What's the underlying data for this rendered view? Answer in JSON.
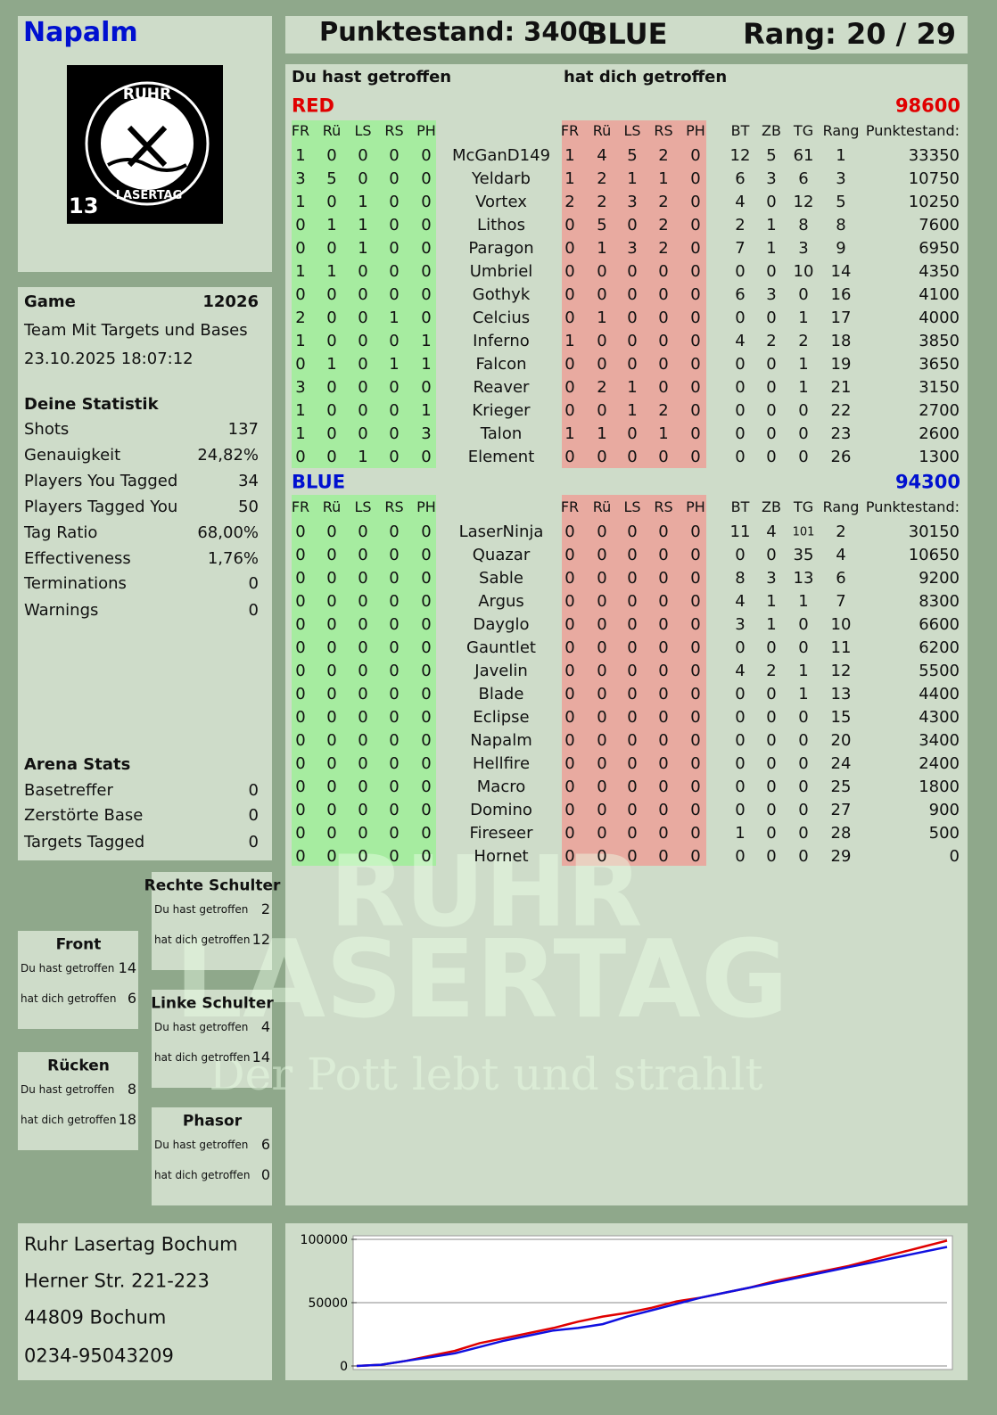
{
  "header": {
    "player": "Napalm",
    "score": "Punktestand: 3400",
    "team": "BLUE",
    "rank": "Rang: 20 / 29"
  },
  "logo": {
    "top": "RUHR",
    "bottom": "LASERTAG",
    "number": "13"
  },
  "game": {
    "label": "Game",
    "id": 12026,
    "mode": "Team Mit Targets und Bases",
    "date": "23.10.2025 18:07:12"
  },
  "stats": {
    "title": "Deine Statistik",
    "rows": [
      [
        "Shots",
        137
      ],
      [
        "Genauigkeit",
        "24,82%"
      ],
      [
        "Players You Tagged",
        34
      ],
      [
        "Players Tagged You",
        50
      ],
      [
        "Tag Ratio",
        "68,00%"
      ],
      [
        "Effectiveness",
        "1,76%"
      ],
      [
        "Terminations",
        0
      ],
      [
        "Warnings",
        0
      ]
    ]
  },
  "arena": {
    "title": "Arena Stats",
    "rows": [
      [
        "Basetreffer",
        0
      ],
      [
        "Zerstörte Base",
        0
      ],
      [
        "Targets Tagged",
        0
      ]
    ]
  },
  "zones": {
    "you_hit_label": "Du hast getroffen",
    "hit_you_label": "hat dich getroffen",
    "items": [
      {
        "name": "Rechte Schulter",
        "you_hit": 2,
        "hit_you": 12
      },
      {
        "name": "Front",
        "you_hit": 14,
        "hit_you": 6
      },
      {
        "name": "Linke Schulter",
        "you_hit": 4,
        "hit_you": 14
      },
      {
        "name": "Rücken",
        "you_hit": 8,
        "hit_you": 18
      },
      {
        "name": "Phasor",
        "you_hit": 6,
        "hit_you": 0
      }
    ]
  },
  "address": [
    "Ruhr Lasertag Bochum",
    "Herner Str. 221-223",
    "44809 Bochum",
    "0234-95043209"
  ],
  "table": {
    "you_hit_heading": "Du hast getroffen",
    "hit_you_heading": "hat dich getroffen",
    "hit_columns": [
      "FR",
      "Rü",
      "LS",
      "RS",
      "PH"
    ],
    "stat_columns": [
      "BT",
      "ZB",
      "TG",
      "Rang",
      "Punktestand:"
    ],
    "teams": [
      {
        "name": "RED",
        "color": "#e00000",
        "total": 98600,
        "rows": [
          {
            "name": "McGanD149",
            "you_hit": [
              1,
              0,
              0,
              0,
              0
            ],
            "hit_you": [
              1,
              4,
              5,
              2,
              0
            ],
            "stats": [
              12,
              5,
              61,
              1,
              33350
            ]
          },
          {
            "name": "Yeldarb",
            "you_hit": [
              3,
              5,
              0,
              0,
              0
            ],
            "hit_you": [
              1,
              2,
              1,
              1,
              0
            ],
            "stats": [
              6,
              3,
              6,
              3,
              10750
            ]
          },
          {
            "name": "Vortex",
            "you_hit": [
              1,
              0,
              1,
              0,
              0
            ],
            "hit_you": [
              2,
              2,
              3,
              2,
              0
            ],
            "stats": [
              4,
              0,
              12,
              5,
              10250
            ]
          },
          {
            "name": "Lithos",
            "you_hit": [
              0,
              1,
              1,
              0,
              0
            ],
            "hit_you": [
              0,
              5,
              0,
              2,
              0
            ],
            "stats": [
              2,
              1,
              8,
              8,
              7600
            ]
          },
          {
            "name": "Paragon",
            "you_hit": [
              0,
              0,
              1,
              0,
              0
            ],
            "hit_you": [
              0,
              1,
              3,
              2,
              0
            ],
            "stats": [
              7,
              1,
              3,
              9,
              6950
            ]
          },
          {
            "name": "Umbriel",
            "you_hit": [
              1,
              1,
              0,
              0,
              0
            ],
            "hit_you": [
              0,
              0,
              0,
              0,
              0
            ],
            "stats": [
              0,
              0,
              10,
              14,
              4350
            ]
          },
          {
            "name": "Gothyk",
            "you_hit": [
              0,
              0,
              0,
              0,
              0
            ],
            "hit_you": [
              0,
              0,
              0,
              0,
              0
            ],
            "stats": [
              6,
              3,
              0,
              16,
              4100
            ]
          },
          {
            "name": "Celcius",
            "you_hit": [
              2,
              0,
              0,
              1,
              0
            ],
            "hit_you": [
              0,
              1,
              0,
              0,
              0
            ],
            "stats": [
              0,
              0,
              1,
              17,
              4000
            ]
          },
          {
            "name": "Inferno",
            "you_hit": [
              1,
              0,
              0,
              0,
              1
            ],
            "hit_you": [
              1,
              0,
              0,
              0,
              0
            ],
            "stats": [
              4,
              2,
              2,
              18,
              3850
            ]
          },
          {
            "name": "Falcon",
            "you_hit": [
              0,
              1,
              0,
              1,
              1
            ],
            "hit_you": [
              0,
              0,
              0,
              0,
              0
            ],
            "stats": [
              0,
              0,
              1,
              19,
              3650
            ]
          },
          {
            "name": "Reaver",
            "you_hit": [
              3,
              0,
              0,
              0,
              0
            ],
            "hit_you": [
              0,
              2,
              1,
              0,
              0
            ],
            "stats": [
              0,
              0,
              1,
              21,
              3150
            ]
          },
          {
            "name": "Krieger",
            "you_hit": [
              1,
              0,
              0,
              0,
              1
            ],
            "hit_you": [
              0,
              0,
              1,
              2,
              0
            ],
            "stats": [
              0,
              0,
              0,
              22,
              2700
            ]
          },
          {
            "name": "Talon",
            "you_hit": [
              1,
              0,
              0,
              0,
              3
            ],
            "hit_you": [
              1,
              1,
              0,
              1,
              0
            ],
            "stats": [
              0,
              0,
              0,
              23,
              2600
            ]
          },
          {
            "name": "Element",
            "you_hit": [
              0,
              0,
              1,
              0,
              0
            ],
            "hit_you": [
              0,
              0,
              0,
              0,
              0
            ],
            "stats": [
              0,
              0,
              0,
              26,
              1300
            ]
          }
        ]
      },
      {
        "name": "BLUE",
        "color": "#0010d0",
        "total": 94300,
        "rows": [
          {
            "name": "LaserNinja",
            "you_hit": [
              0,
              0,
              0,
              0,
              0
            ],
            "hit_you": [
              0,
              0,
              0,
              0,
              0
            ],
            "stats": [
              11,
              4,
              101,
              2,
              30150
            ]
          },
          {
            "name": "Quazar",
            "you_hit": [
              0,
              0,
              0,
              0,
              0
            ],
            "hit_you": [
              0,
              0,
              0,
              0,
              0
            ],
            "stats": [
              0,
              0,
              35,
              4,
              10650
            ]
          },
          {
            "name": "Sable",
            "you_hit": [
              0,
              0,
              0,
              0,
              0
            ],
            "hit_you": [
              0,
              0,
              0,
              0,
              0
            ],
            "stats": [
              8,
              3,
              13,
              6,
              9200
            ]
          },
          {
            "name": "Argus",
            "you_hit": [
              0,
              0,
              0,
              0,
              0
            ],
            "hit_you": [
              0,
              0,
              0,
              0,
              0
            ],
            "stats": [
              4,
              1,
              1,
              7,
              8300
            ]
          },
          {
            "name": "Dayglo",
            "you_hit": [
              0,
              0,
              0,
              0,
              0
            ],
            "hit_you": [
              0,
              0,
              0,
              0,
              0
            ],
            "stats": [
              3,
              1,
              0,
              10,
              6600
            ]
          },
          {
            "name": "Gauntlet",
            "you_hit": [
              0,
              0,
              0,
              0,
              0
            ],
            "hit_you": [
              0,
              0,
              0,
              0,
              0
            ],
            "stats": [
              0,
              0,
              0,
              11,
              6200
            ]
          },
          {
            "name": "Javelin",
            "you_hit": [
              0,
              0,
              0,
              0,
              0
            ],
            "hit_you": [
              0,
              0,
              0,
              0,
              0
            ],
            "stats": [
              4,
              2,
              1,
              12,
              5500
            ]
          },
          {
            "name": "Blade",
            "you_hit": [
              0,
              0,
              0,
              0,
              0
            ],
            "hit_you": [
              0,
              0,
              0,
              0,
              0
            ],
            "stats": [
              0,
              0,
              1,
              13,
              4400
            ]
          },
          {
            "name": "Eclipse",
            "you_hit": [
              0,
              0,
              0,
              0,
              0
            ],
            "hit_you": [
              0,
              0,
              0,
              0,
              0
            ],
            "stats": [
              0,
              0,
              0,
              15,
              4300
            ]
          },
          {
            "name": "Napalm",
            "you_hit": [
              0,
              0,
              0,
              0,
              0
            ],
            "hit_you": [
              0,
              0,
              0,
              0,
              0
            ],
            "stats": [
              0,
              0,
              0,
              20,
              3400
            ]
          },
          {
            "name": "Hellfire",
            "you_hit": [
              0,
              0,
              0,
              0,
              0
            ],
            "hit_you": [
              0,
              0,
              0,
              0,
              0
            ],
            "stats": [
              0,
              0,
              0,
              24,
              2400
            ]
          },
          {
            "name": "Macro",
            "you_hit": [
              0,
              0,
              0,
              0,
              0
            ],
            "hit_you": [
              0,
              0,
              0,
              0,
              0
            ],
            "stats": [
              0,
              0,
              0,
              25,
              1800
            ]
          },
          {
            "name": "Domino",
            "you_hit": [
              0,
              0,
              0,
              0,
              0
            ],
            "hit_you": [
              0,
              0,
              0,
              0,
              0
            ],
            "stats": [
              0,
              0,
              0,
              27,
              900
            ]
          },
          {
            "name": "Fireseer",
            "you_hit": [
              0,
              0,
              0,
              0,
              0
            ],
            "hit_you": [
              0,
              0,
              0,
              0,
              0
            ],
            "stats": [
              1,
              0,
              0,
              28,
              500
            ]
          },
          {
            "name": "Hornet",
            "you_hit": [
              0,
              0,
              0,
              0,
              0
            ],
            "hit_you": [
              0,
              0,
              0,
              0,
              0
            ],
            "stats": [
              0,
              0,
              0,
              29,
              0
            ]
          }
        ]
      }
    ]
  },
  "watermark": {
    "line1": "RUHR",
    "line2": "LASERTAG",
    "slogan": "Der Pott lebt und strahlt"
  },
  "chart_data": {
    "type": "line",
    "ylim": [
      0,
      100000
    ],
    "yticks": [
      0,
      50000,
      100000
    ],
    "grid": true,
    "series": [
      {
        "color": "#e00000",
        "values": [
          0,
          1000,
          4000,
          8000,
          12000,
          18000,
          22000,
          26000,
          30000,
          35000,
          39000,
          42000,
          46000,
          51000,
          54000,
          58000,
          62000,
          67000,
          71000,
          75000,
          79000,
          84000,
          89000,
          94000,
          99000
        ]
      },
      {
        "color": "#1010e0",
        "values": [
          0,
          1000,
          4000,
          7000,
          10000,
          15000,
          20000,
          24000,
          28000,
          30000,
          33000,
          39000,
          44000,
          49000,
          54000,
          58000,
          62000,
          66000,
          70000,
          74000,
          78000,
          82000,
          86000,
          90000,
          94000
        ]
      }
    ]
  }
}
